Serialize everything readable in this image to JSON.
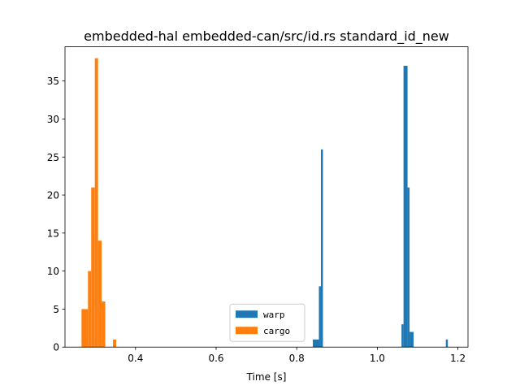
{
  "chart_data": {
    "type": "histogram",
    "title": "embedded-hal embedded-can/src/id.rs standard_id_new",
    "xlabel": "Time [s]",
    "ylabel": "",
    "xlim": [
      0.225,
      1.225
    ],
    "ylim": [
      0,
      39.5
    ],
    "xticks": [
      0.4,
      0.6,
      0.8,
      1.0,
      1.2
    ],
    "xtick_labels": [
      "0.4",
      "0.6",
      "0.8",
      "1.0",
      "1.2"
    ],
    "yticks": [
      0,
      5,
      10,
      15,
      20,
      25,
      30,
      35
    ],
    "ytick_labels": [
      "0",
      "5",
      "10",
      "15",
      "20",
      "25",
      "30",
      "35"
    ],
    "grid": false,
    "legend_position": "lower center",
    "series": [
      {
        "name": "warp",
        "color": "#1f77b4",
        "bins": [
          {
            "x0": 0.84,
            "x1": 0.85,
            "count": 1
          },
          {
            "x0": 0.85,
            "x1": 0.855,
            "count": 1
          },
          {
            "x0": 0.855,
            "x1": 0.86,
            "count": 8
          },
          {
            "x0": 0.86,
            "x1": 0.865,
            "count": 26
          },
          {
            "x0": 1.06,
            "x1": 1.065,
            "count": 3
          },
          {
            "x0": 1.065,
            "x1": 1.075,
            "count": 37
          },
          {
            "x0": 1.075,
            "x1": 1.08,
            "count": 21
          },
          {
            "x0": 1.08,
            "x1": 1.09,
            "count": 2
          },
          {
            "x0": 1.17,
            "x1": 1.175,
            "count": 1
          }
        ]
      },
      {
        "name": "cargo",
        "color": "#ff7f0e",
        "bins": [
          {
            "x0": 0.266,
            "x1": 0.282,
            "count": 5
          },
          {
            "x0": 0.282,
            "x1": 0.29,
            "count": 10
          },
          {
            "x0": 0.29,
            "x1": 0.299,
            "count": 21
          },
          {
            "x0": 0.299,
            "x1": 0.307,
            "count": 38
          },
          {
            "x0": 0.307,
            "x1": 0.316,
            "count": 14
          },
          {
            "x0": 0.316,
            "x1": 0.325,
            "count": 6
          },
          {
            "x0": 0.344,
            "x1": 0.352,
            "count": 1
          }
        ]
      }
    ]
  }
}
